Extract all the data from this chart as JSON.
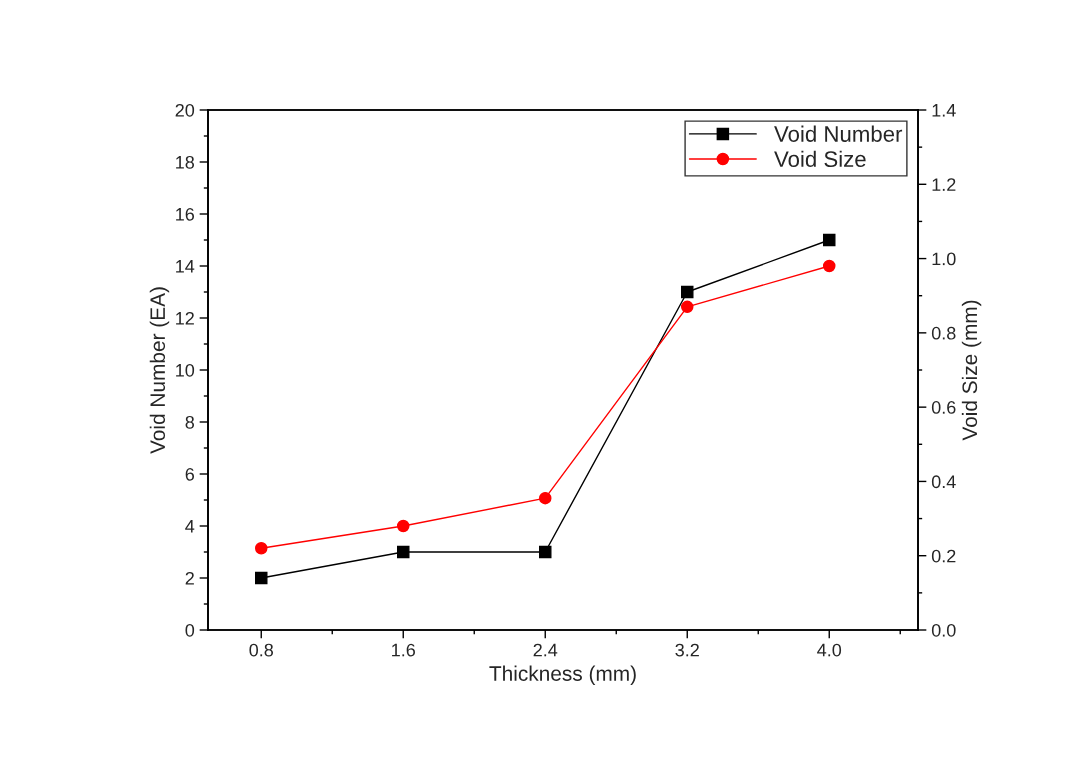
{
  "chart_data": {
    "type": "line",
    "xlabel": "Thickness (mm)",
    "ylabel": "Void Number (EA)",
    "y2label": "Void Size (mm)",
    "x": [
      0.8,
      1.6,
      2.4,
      3.2,
      4.0
    ],
    "series": [
      {
        "name": "Void Number",
        "color": "#000000",
        "marker": "square",
        "values": [
          2,
          3,
          3,
          13,
          15
        ]
      },
      {
        "name": "Void Size",
        "color": "#ff0000",
        "marker": "circle",
        "axis": "y2",
        "values": [
          0.22,
          0.28,
          0.355,
          0.87,
          0.98
        ]
      }
    ],
    "xlim": [
      0.5,
      4.5
    ],
    "xticks": [
      {
        "value": 0.8,
        "label": "0.8"
      },
      {
        "value": 1.2,
        "label": null
      },
      {
        "value": 1.6,
        "label": "1.6"
      },
      {
        "value": 2.0,
        "label": null
      },
      {
        "value": 2.4,
        "label": "2.4"
      },
      {
        "value": 2.8,
        "label": null
      },
      {
        "value": 3.2,
        "label": "3.2"
      },
      {
        "value": 3.6,
        "label": null
      },
      {
        "value": 4.0,
        "label": "4.0"
      },
      {
        "value": 4.4,
        "label": null
      }
    ],
    "ylim": [
      0,
      20
    ],
    "yticks": [
      0,
      {
        "value": 1,
        "label": null
      },
      2,
      {
        "value": 3,
        "label": null
      },
      4,
      {
        "value": 5,
        "label": null
      },
      6,
      {
        "value": 7,
        "label": null
      },
      8,
      {
        "value": 9,
        "label": null
      },
      10,
      {
        "value": 11,
        "label": null
      },
      12,
      {
        "value": 13,
        "label": null
      },
      14,
      {
        "value": 15,
        "label": null
      },
      16,
      {
        "value": 17,
        "label": null
      },
      18,
      {
        "value": 19,
        "label": null
      },
      20
    ],
    "y2lim": [
      0,
      1.4
    ],
    "y2ticks": [
      {
        "value": 0,
        "label": "0.0"
      },
      {
        "value": 0.1,
        "label": null
      },
      {
        "value": 0.2,
        "label": "0.2"
      },
      {
        "value": 0.3,
        "label": null
      },
      {
        "value": 0.4,
        "label": "0.4"
      },
      {
        "value": 0.5,
        "label": null
      },
      {
        "value": 0.6,
        "label": "0.6"
      },
      {
        "value": 0.7,
        "label": null
      },
      {
        "value": 0.8,
        "label": "0.8"
      },
      {
        "value": 0.9,
        "label": null
      },
      {
        "value": 1.0,
        "label": "1.0"
      },
      {
        "value": 1.1,
        "label": null
      },
      {
        "value": 1.2,
        "label": "1.2"
      },
      {
        "value": 1.3,
        "label": null
      },
      {
        "value": 1.4,
        "label": "1.4"
      }
    ],
    "grid": false,
    "legend": "top right",
    "line_style": "solid"
  }
}
